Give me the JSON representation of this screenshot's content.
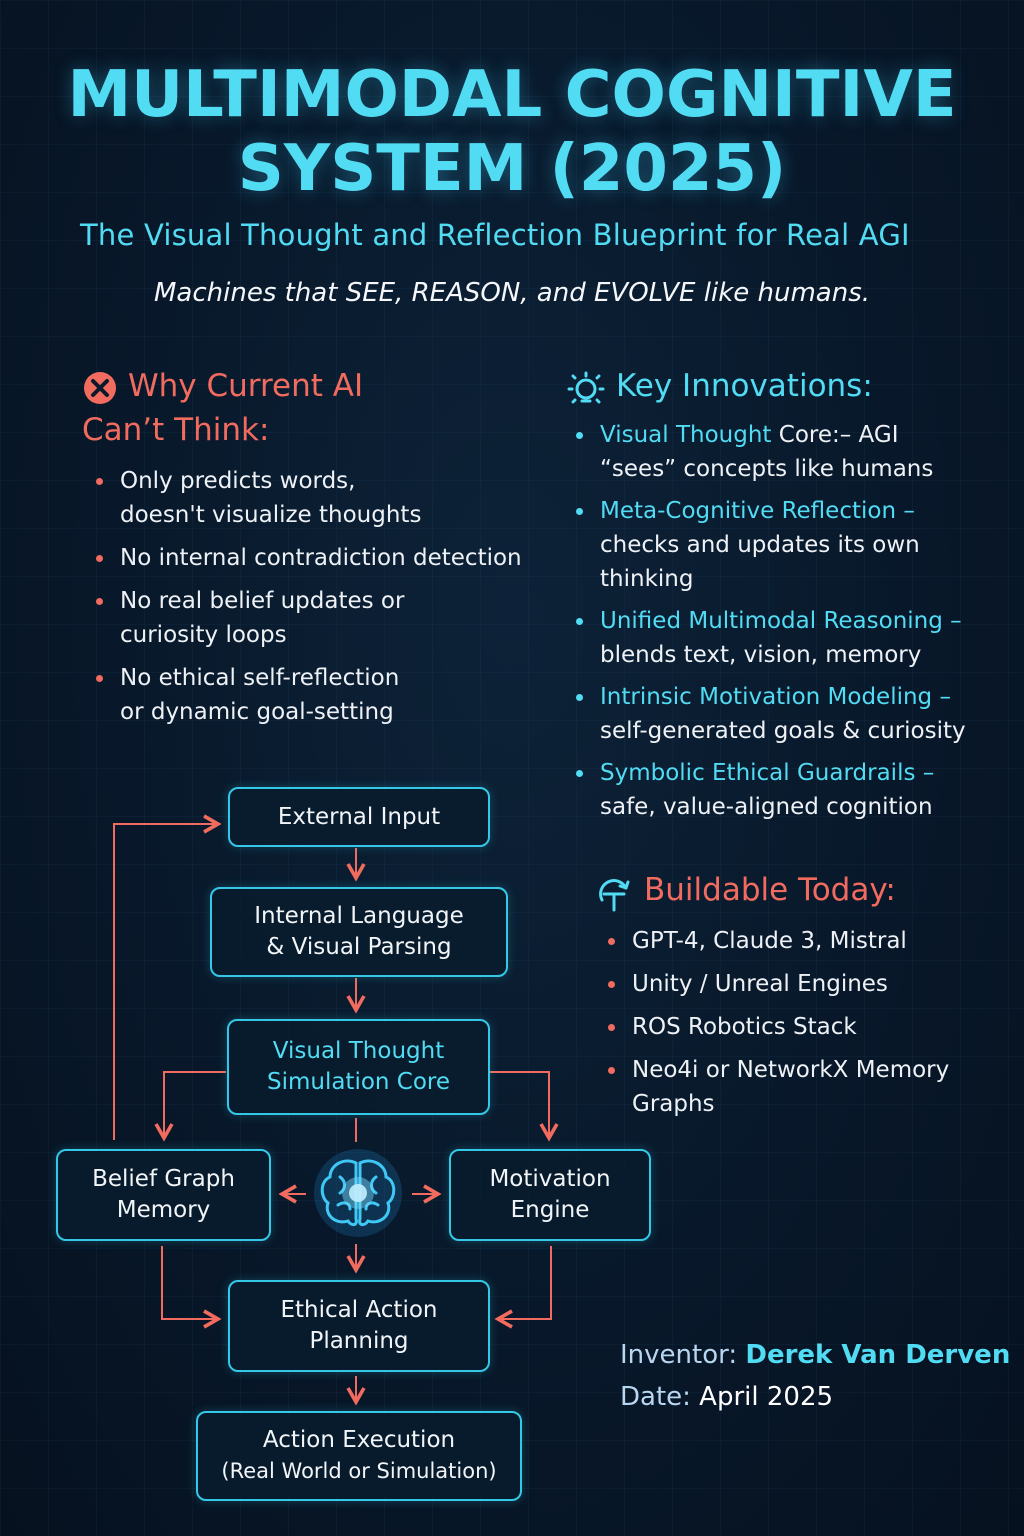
{
  "header": {
    "title_line1": "MULTIMODAL COGNITIVE",
    "title_line2": "SYSTEM (2025)",
    "subtitle": "The Visual Thought and Reflection Blueprint for Real AGI",
    "tagline": "Machines that SEE, REASON, and EVOLVE like humans."
  },
  "why": {
    "heading_line1": "Why Current AI",
    "heading_line2": "Can’t Think:",
    "icon": "x-circle-icon",
    "items": [
      {
        "line1": "Only predicts words,",
        "line2": "doesn't visualize thoughts"
      },
      {
        "line1": "No internal contradiction detection",
        "line2": ""
      },
      {
        "line1": "No real belief updates or",
        "line2": "curiosity loops"
      },
      {
        "line1": "No ethical self-reflection",
        "line2": "or dynamic goal-setting"
      }
    ]
  },
  "innovations": {
    "heading": "Key Innovations:",
    "icon": "lightbulb-icon",
    "items": [
      {
        "name": "Visual Thought",
        "rest": " Core:– AGI",
        "desc": "“sees” concepts like humans"
      },
      {
        "name": "Meta-Cognitive Reflection –",
        "rest": "",
        "desc": "checks and updates its own thinking"
      },
      {
        "name": "Unified Multimodal Reasoning –",
        "rest": "",
        "desc": "blends text, vision, memory"
      },
      {
        "name": "Intrinsic Motivation Modeling –",
        "rest": "",
        "desc": "self-generated goals & curiosity"
      },
      {
        "name": "Symbolic Ethical Guardrails –",
        "rest": "",
        "desc": "safe, value-aligned cognition"
      }
    ]
  },
  "buildable": {
    "heading": "Buildable Today:",
    "icon": "tools-icon",
    "items": [
      {
        "line1": "GPT-4, Claude 3, Mistral",
        "line2": ""
      },
      {
        "line1": "Unity / Unreal Engines",
        "line2": ""
      },
      {
        "line1": "ROS Robotics Stack",
        "line2": ""
      },
      {
        "line1": "Neo4i or NetworkX Memory",
        "line2": "Graphs"
      }
    ]
  },
  "flow": {
    "external_input": "External Input",
    "parsing_line1": "Internal Language",
    "parsing_line2": "& Visual Parsing",
    "core_line1": "Visual Thought",
    "core_line2": "Simulation Core",
    "belief_line1": "Belief Graph",
    "belief_line2": "Memory",
    "motivation_line1": "Motivation",
    "motivation_line2": "Engine",
    "ethical_line1": "Ethical Action",
    "ethical_line2": "Planning",
    "execution_line1": "Action Execution",
    "execution_line2": "(Real World or Simulation)",
    "center_icon": "brain-icon"
  },
  "credits": {
    "inventor_label": "Inventor:",
    "inventor_name": "Derek Van Derven",
    "date_label": "Date:",
    "date_value": "April 2025"
  },
  "colors": {
    "accent_cyan": "#52dcf4",
    "accent_red": "#f26b5f",
    "background": "#08182a"
  }
}
